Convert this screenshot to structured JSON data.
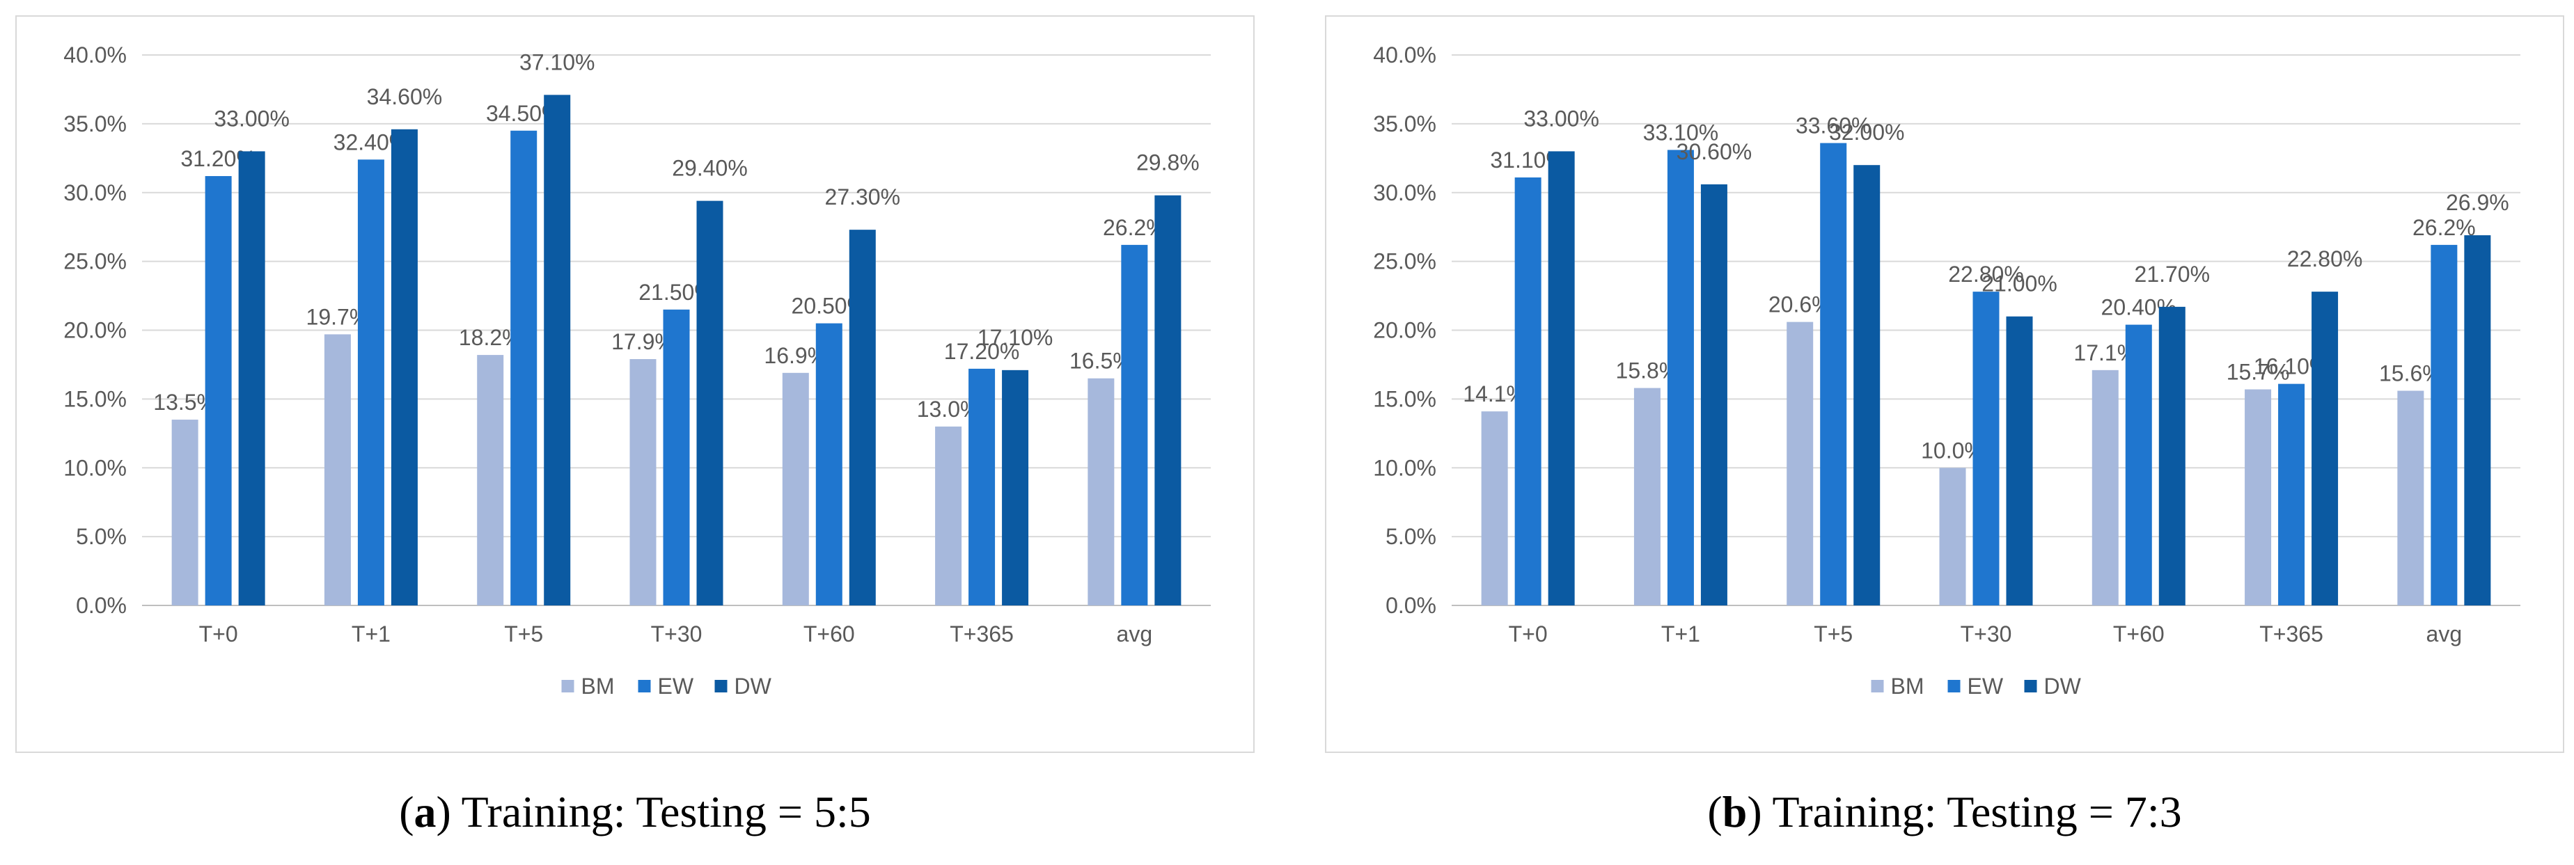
{
  "colors": {
    "BM": "#a6b8dc",
    "EW": "#1f76cf",
    "DW": "#0b5aa2",
    "grid": "#d9d9d9",
    "axis_text": "#595959"
  },
  "captions": [
    {
      "letter": "a",
      "text": "Training: Testing = 5:5"
    },
    {
      "letter": "b",
      "text": "Training: Testing = 7:3"
    }
  ],
  "chart_data": [
    {
      "type": "bar",
      "title": "",
      "xlabel": "",
      "ylabel": "",
      "ylim": [
        0,
        40
      ],
      "yticks": [
        "0.0%",
        "5.0%",
        "10.0%",
        "15.0%",
        "20.0%",
        "25.0%",
        "30.0%",
        "35.0%",
        "40.0%"
      ],
      "categories": [
        "T+0",
        "T+1",
        "T+5",
        "T+30",
        "T+60",
        "T+365",
        "avg"
      ],
      "series": [
        {
          "name": "BM",
          "values": [
            13.5,
            19.7,
            18.2,
            17.9,
            16.9,
            13.0,
            16.5
          ],
          "labels": [
            "13.5%",
            "19.7%",
            "18.2%",
            "17.9%",
            "16.9%",
            "13.0%",
            "16.5%"
          ]
        },
        {
          "name": "EW",
          "values": [
            31.2,
            32.4,
            34.5,
            21.5,
            20.5,
            17.2,
            26.2
          ],
          "labels": [
            "31.20%",
            "32.40%",
            "34.50%",
            "21.50%",
            "20.50%",
            "17.20%",
            "26.2%"
          ]
        },
        {
          "name": "DW",
          "values": [
            33.0,
            34.6,
            37.1,
            29.4,
            27.3,
            17.1,
            29.8
          ],
          "labels": [
            "33.00%",
            "34.60%",
            "37.10%",
            "29.40%",
            "27.30%",
            "17.10%",
            "29.8%"
          ]
        }
      ],
      "legend": "bottom-center"
    },
    {
      "type": "bar",
      "title": "",
      "xlabel": "",
      "ylabel": "",
      "ylim": [
        0,
        40
      ],
      "yticks": [
        "0.0%",
        "5.0%",
        "10.0%",
        "15.0%",
        "20.0%",
        "25.0%",
        "30.0%",
        "35.0%",
        "40.0%"
      ],
      "categories": [
        "T+0",
        "T+1",
        "T+5",
        "T+30",
        "T+60",
        "T+365",
        "avg"
      ],
      "series": [
        {
          "name": "BM",
          "values": [
            14.1,
            15.8,
            20.6,
            10.0,
            17.1,
            15.7,
            15.6
          ],
          "labels": [
            "14.1%",
            "15.8%",
            "20.6%",
            "10.0%",
            "17.1%",
            "15.7%",
            "15.6%"
          ]
        },
        {
          "name": "EW",
          "values": [
            31.1,
            33.1,
            33.6,
            22.8,
            20.4,
            16.1,
            26.2
          ],
          "labels": [
            "31.10%",
            "33.10%",
            "33.60%",
            "22.80%",
            "20.40%",
            "16.10%",
            "26.2%"
          ]
        },
        {
          "name": "DW",
          "values": [
            33.0,
            30.6,
            32.0,
            21.0,
            21.7,
            22.8,
            26.9
          ],
          "labels": [
            "33.00%",
            "30.60%",
            "32.00%",
            "21.00%",
            "21.70%",
            "22.80%",
            "26.9%"
          ]
        }
      ],
      "legend": "bottom-center"
    }
  ]
}
